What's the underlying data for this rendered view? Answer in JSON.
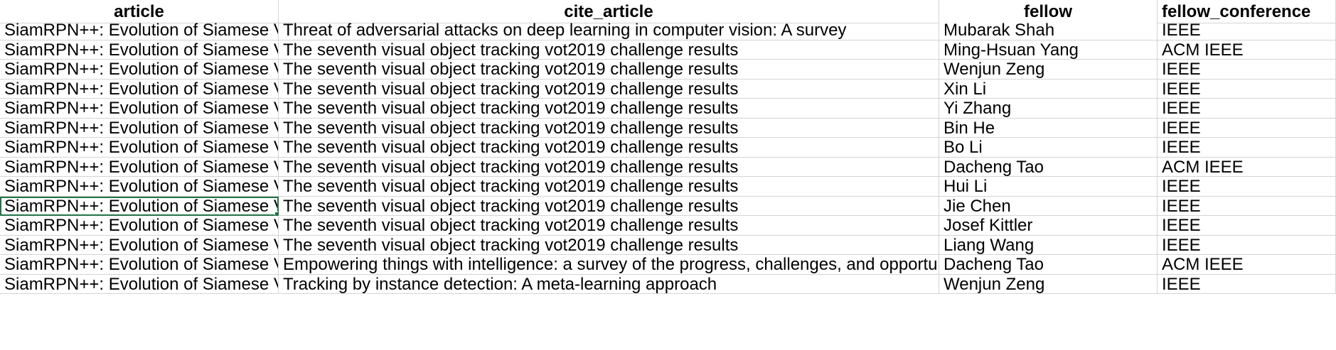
{
  "columns": [
    "article",
    "cite_article",
    "fellow",
    "fellow_conference"
  ],
  "rows": [
    {
      "article": "SiamRPN++: Evolution of Siamese Visual Tracking with Very Deep Networks",
      "cite_article": "Threat of adversarial attacks on deep learning in computer vision: A survey",
      "fellow": "Mubarak Shah",
      "fellow_conference": "IEEE"
    },
    {
      "article": "SiamRPN++: Evolution of Siamese Visual Tracking with Very Deep Networks",
      "cite_article": "The seventh visual object tracking vot2019 challenge results",
      "fellow": "Ming-Hsuan Yang",
      "fellow_conference": "ACM IEEE"
    },
    {
      "article": "SiamRPN++: Evolution of Siamese Visual Tracking with Very Deep Networks",
      "cite_article": "The seventh visual object tracking vot2019 challenge results",
      "fellow": "Wenjun Zeng",
      "fellow_conference": "IEEE"
    },
    {
      "article": "SiamRPN++: Evolution of Siamese Visual Tracking with Very Deep Networks",
      "cite_article": "The seventh visual object tracking vot2019 challenge results",
      "fellow": "Xin Li",
      "fellow_conference": "IEEE"
    },
    {
      "article": "SiamRPN++: Evolution of Siamese Visual Tracking with Very Deep Networks",
      "cite_article": "The seventh visual object tracking vot2019 challenge results",
      "fellow": "Yi Zhang",
      "fellow_conference": "IEEE"
    },
    {
      "article": "SiamRPN++: Evolution of Siamese Visual Tracking with Very Deep Networks",
      "cite_article": "The seventh visual object tracking vot2019 challenge results",
      "fellow": "Bin He",
      "fellow_conference": "IEEE"
    },
    {
      "article": "SiamRPN++: Evolution of Siamese Visual Tracking with Very Deep Networks",
      "cite_article": "The seventh visual object tracking vot2019 challenge results",
      "fellow": "Bo Li",
      "fellow_conference": "IEEE"
    },
    {
      "article": "SiamRPN++: Evolution of Siamese Visual Tracking with Very Deep Networks",
      "cite_article": "The seventh visual object tracking vot2019 challenge results",
      "fellow": "Dacheng Tao",
      "fellow_conference": "ACM IEEE"
    },
    {
      "article": "SiamRPN++: Evolution of Siamese Visual Tracking with Very Deep Networks",
      "cite_article": "The seventh visual object tracking vot2019 challenge results",
      "fellow": "Hui Li",
      "fellow_conference": "IEEE"
    },
    {
      "article": "SiamRPN++: Evolution of Siamese Visual Tracking with Very Deep Networks",
      "cite_article": "The seventh visual object tracking vot2019 challenge results",
      "fellow": "Jie Chen",
      "fellow_conference": "IEEE"
    },
    {
      "article": "SiamRPN++: Evolution of Siamese Visual Tracking with Very Deep Networks",
      "cite_article": "The seventh visual object tracking vot2019 challenge results",
      "fellow": "Josef Kittler",
      "fellow_conference": "IEEE"
    },
    {
      "article": "SiamRPN++: Evolution of Siamese Visual Tracking with Very Deep Networks",
      "cite_article": "The seventh visual object tracking vot2019 challenge results",
      "fellow": "Liang Wang",
      "fellow_conference": "IEEE"
    },
    {
      "article": "SiamRPN++: Evolution of Siamese Visual Tracking with Very Deep Networks",
      "cite_article": "Empowering things with intelligence: a survey of the progress, challenges, and opportunities",
      "fellow": "Dacheng Tao",
      "fellow_conference": "ACM IEEE"
    },
    {
      "article": "SiamRPN++: Evolution of Siamese Visual Tracking with Very Deep Networks",
      "cite_article": "Tracking by instance detection: A meta-learning approach",
      "fellow": "Wenjun Zeng",
      "fellow_conference": "IEEE"
    }
  ],
  "selected_row": 9,
  "colors": {
    "grid": "#d4d4d4",
    "selection": "#217346"
  }
}
